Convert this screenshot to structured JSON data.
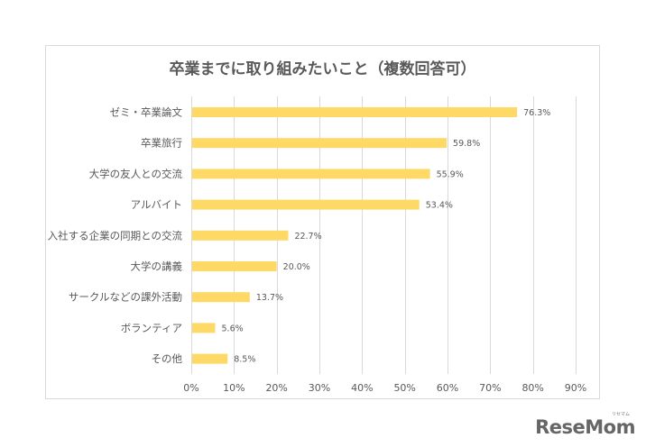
{
  "chart_data": {
    "type": "bar",
    "orientation": "horizontal",
    "title": "卒業までに取り組みたいこと（複数回答可）",
    "xlabel": "",
    "ylabel": "",
    "categories": [
      "ゼミ・卒業論文",
      "卒業旅行",
      "大学の友人との交流",
      "アルバイト",
      "入社する企業の同期との交流",
      "大学の講義",
      "サークルなどの課外活動",
      "ボランティア",
      "その他"
    ],
    "values": [
      76.3,
      59.8,
      55.9,
      53.4,
      22.7,
      20.0,
      13.7,
      5.6,
      8.5
    ],
    "value_labels": [
      "76.3%",
      "59.8%",
      "55.9%",
      "53.4%",
      "22.7%",
      "20.0%",
      "13.7%",
      "5.6%",
      "8.5%"
    ],
    "xlim": [
      0,
      90
    ],
    "xticks": [
      0,
      10,
      20,
      30,
      40,
      50,
      60,
      70,
      80,
      90
    ],
    "xtick_labels": [
      "0%",
      "10%",
      "20%",
      "30%",
      "40%",
      "50%",
      "60%",
      "70%",
      "80%",
      "90%"
    ],
    "grid": true,
    "legend": "none",
    "bar_color": "#FFD966",
    "grid_color": "#d9d9d9",
    "text_color": "#595959"
  },
  "logo": {
    "text": "ReseMom",
    "subtext": "リセマム"
  }
}
